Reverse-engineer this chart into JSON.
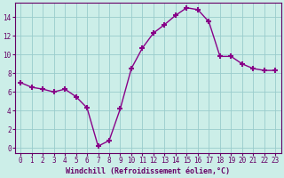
{
  "x": [
    0,
    1,
    2,
    3,
    4,
    5,
    6,
    7,
    8,
    9,
    10,
    11,
    12,
    13,
    14,
    15,
    16,
    17,
    18,
    19,
    20,
    21,
    22,
    23
  ],
  "y": [
    7.0,
    6.5,
    6.3,
    6.0,
    6.3,
    5.5,
    4.3,
    0.2,
    0.8,
    4.2,
    8.5,
    10.7,
    12.3,
    13.2,
    14.2,
    15.0,
    14.8,
    13.5,
    9.8,
    9.8,
    9.0,
    8.5,
    8.3,
    8.3
  ],
  "line_color": "#880088",
  "marker": "+",
  "marker_size": 5,
  "marker_lw": 1.5,
  "line_width": 1.0,
  "bg_color": "#cceee8",
  "grid_color": "#99cccc",
  "xlabel": "Windchill (Refroidissement éolien,°C)",
  "xlabel_color": "#660066",
  "tick_color": "#660066",
  "spine_color": "#660066",
  "ylim": [
    -0.5,
    15.5
  ],
  "xlim": [
    -0.5,
    23.5
  ],
  "yticks": [
    0,
    2,
    4,
    6,
    8,
    10,
    12,
    14
  ],
  "xticks": [
    0,
    1,
    2,
    3,
    4,
    5,
    6,
    7,
    8,
    9,
    10,
    11,
    12,
    13,
    14,
    15,
    16,
    17,
    18,
    19,
    20,
    21,
    22,
    23
  ],
  "tick_fontsize": 5.5,
  "xlabel_fontsize": 6.0
}
